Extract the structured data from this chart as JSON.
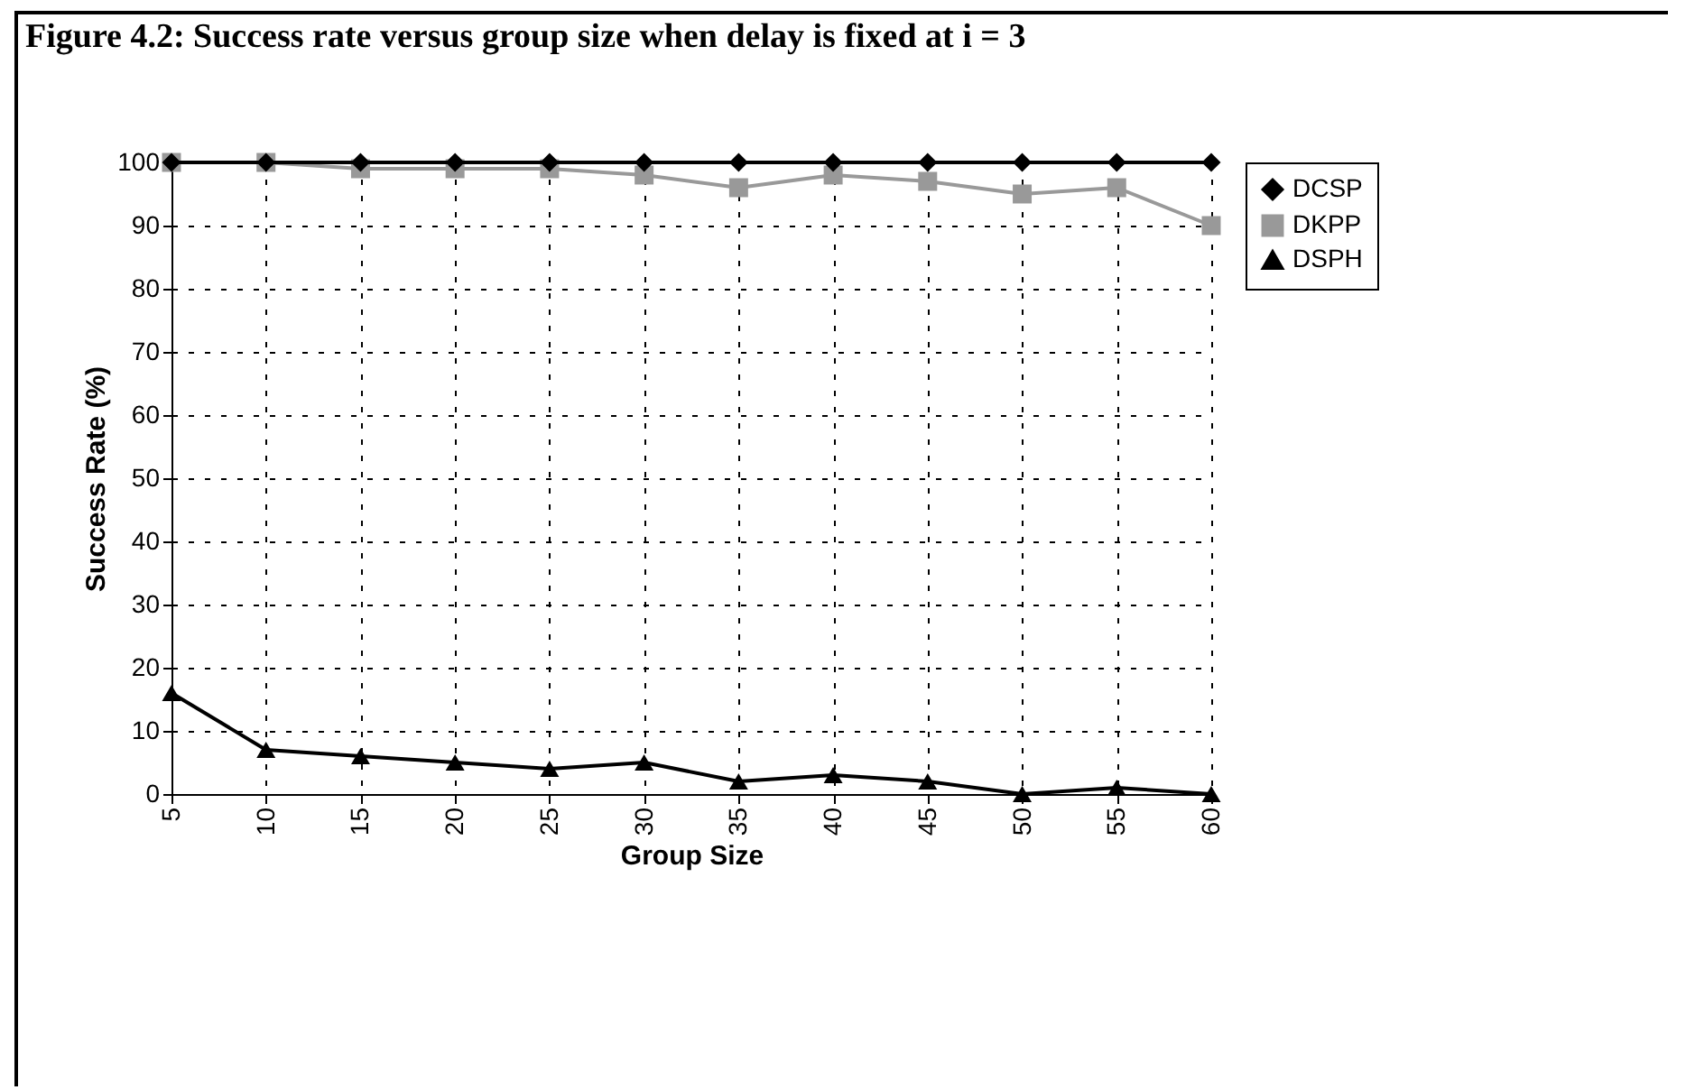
{
  "chart_data": {
    "type": "line",
    "title": "Figure 4.2: Success rate versus group size when delay is fixed at i = 3",
    "xlabel": "Group Size",
    "ylabel": "Success Rate (%)",
    "x": [
      5,
      10,
      15,
      20,
      25,
      30,
      35,
      40,
      45,
      50,
      55,
      60
    ],
    "series": [
      {
        "name": "DCSP",
        "color": "#000000",
        "marker": "diamond",
        "values": [
          100,
          100,
          100,
          100,
          100,
          100,
          100,
          100,
          100,
          100,
          100,
          100
        ]
      },
      {
        "name": "DKPP",
        "color": "#999999",
        "marker": "square",
        "values": [
          100,
          100,
          99,
          99,
          99,
          98,
          96,
          98,
          97,
          95,
          96,
          90
        ]
      },
      {
        "name": "DSPH",
        "color": "#000000",
        "marker": "triangle",
        "values": [
          16,
          7,
          6,
          5,
          4,
          5,
          2,
          3,
          2,
          0,
          1,
          0
        ]
      }
    ],
    "xlim": [
      5,
      60
    ],
    "xticks": [
      5,
      10,
      15,
      20,
      25,
      30,
      35,
      40,
      45,
      50,
      55,
      60
    ],
    "ylim": [
      0,
      100
    ],
    "yticks": [
      0,
      10,
      20,
      30,
      40,
      50,
      60,
      70,
      80,
      90,
      100
    ],
    "grid": true,
    "legend": "right"
  }
}
